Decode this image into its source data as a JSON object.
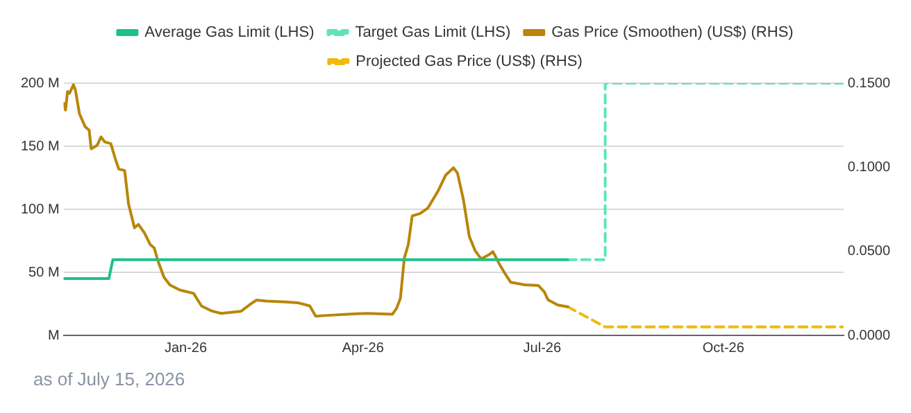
{
  "chart_data": {
    "type": "line",
    "xlim": [
      "2025-10-31",
      "2026-12-01"
    ],
    "xticks": [
      {
        "value": "2026-01-01",
        "label": "Jan-26"
      },
      {
        "value": "2026-04-01",
        "label": "Apr-26"
      },
      {
        "value": "2026-07-01",
        "label": "Jul-26"
      },
      {
        "value": "2026-10-01",
        "label": "Oct-26"
      }
    ],
    "ylim": [
      0,
      200000000
    ],
    "yticks": [
      {
        "value": 0,
        "label": "M"
      },
      {
        "value": 50000000,
        "label": "50 M"
      },
      {
        "value": 100000000,
        "label": "100 M"
      },
      {
        "value": 150000000,
        "label": "150 M"
      },
      {
        "value": 200000000,
        "label": "200 M"
      }
    ],
    "y2lim": [
      0,
      0.15
    ],
    "y2ticks": [
      {
        "value": 0,
        "label": "0.0000"
      },
      {
        "value": 0.05,
        "label": "0.0500"
      },
      {
        "value": 0.1,
        "label": "0.1000"
      },
      {
        "value": 0.15,
        "label": "0.1500"
      }
    ],
    "grid": "y",
    "legend": "top",
    "marker": "none",
    "annotations": [
      "as of July 15, 2026"
    ],
    "series": [
      {
        "name": "Average Gas Limit (LHS)",
        "color": "#1fc08a",
        "line_style": "solid",
        "x": [
          "2025-10-31",
          "2025-11-23",
          "2025-11-25",
          "2026-07-14"
        ],
        "values": [
          45000000,
          45000000,
          60000000,
          60000000
        ]
      },
      {
        "name": "Target Gas Limit (LHS)",
        "color": "#5fe3bd",
        "line_style": "dashed",
        "x": [
          "2026-07-14",
          "2026-08-02",
          "2026-08-02",
          "2026-12-01"
        ],
        "values": [
          60000000,
          60000000,
          200000000,
          200000000
        ]
      },
      {
        "name": "Gas Price (Smoothen) (US$) (RHS)",
        "color": "#b8860b",
        "line_style": "solid",
        "axis": "y2",
        "x": [
          "2025-10-31",
          "2025-11-01",
          "2025-11-02",
          "2025-11-03",
          "2025-11-05",
          "2025-11-06",
          "2025-11-08",
          "2025-11-11",
          "2025-11-13",
          "2025-11-14",
          "2025-11-17",
          "2025-11-19",
          "2025-11-21",
          "2025-11-24",
          "2025-11-26",
          "2025-11-28",
          "2025-12-01",
          "2025-12-03",
          "2025-12-06",
          "2025-12-08",
          "2025-12-11",
          "2025-12-14",
          "2025-12-16",
          "2025-12-18",
          "2025-12-21",
          "2025-12-24",
          "2025-12-29",
          "2026-01-05",
          "2026-01-09",
          "2026-01-14",
          "2026-01-19",
          "2026-01-29",
          "2026-02-03",
          "2026-02-06",
          "2026-02-11",
          "2026-02-21",
          "2026-02-27",
          "2026-03-05",
          "2026-03-08",
          "2026-03-14",
          "2026-03-24",
          "2026-04-03",
          "2026-04-16",
          "2026-04-18",
          "2026-04-20",
          "2026-04-22",
          "2026-04-24",
          "2026-04-26",
          "2026-04-30",
          "2026-05-04",
          "2026-05-09",
          "2026-05-13",
          "2026-05-17",
          "2026-05-19",
          "2026-05-22",
          "2026-05-25",
          "2026-05-28",
          "2026-05-31",
          "2026-06-04",
          "2026-06-06",
          "2026-06-09",
          "2026-06-12",
          "2026-06-15",
          "2026-06-22",
          "2026-06-29",
          "2026-07-02",
          "2026-07-04",
          "2026-07-09",
          "2026-07-14"
        ],
        "values": [
          0.138,
          0.134,
          0.145,
          0.144,
          0.149,
          0.146,
          0.132,
          0.124,
          0.122,
          0.111,
          0.113,
          0.118,
          0.115,
          0.114,
          0.106,
          0.099,
          0.098,
          0.078,
          0.064,
          0.066,
          0.061,
          0.054,
          0.052,
          0.044,
          0.0345,
          0.03,
          0.027,
          0.025,
          0.0175,
          0.0146,
          0.0131,
          0.0143,
          0.0187,
          0.021,
          0.0204,
          0.0199,
          0.0194,
          0.0175,
          0.0114,
          0.0119,
          0.0126,
          0.0131,
          0.0126,
          0.016,
          0.022,
          0.046,
          0.054,
          0.071,
          0.0725,
          0.0758,
          0.0856,
          0.0953,
          0.0997,
          0.0965,
          0.0807,
          0.0588,
          0.0503,
          0.0455,
          0.048,
          0.0498,
          0.043,
          0.037,
          0.0316,
          0.0301,
          0.0297,
          0.026,
          0.0211,
          0.018,
          0.017
        ]
      },
      {
        "name": "Projected Gas Price (US$) (RHS)",
        "color": "#f0b90b",
        "line_style": "dashed",
        "axis": "y2",
        "x": [
          "2026-07-14",
          "2026-08-02",
          "2026-12-01"
        ],
        "values": [
          0.017,
          0.005,
          0.005
        ]
      }
    ]
  }
}
